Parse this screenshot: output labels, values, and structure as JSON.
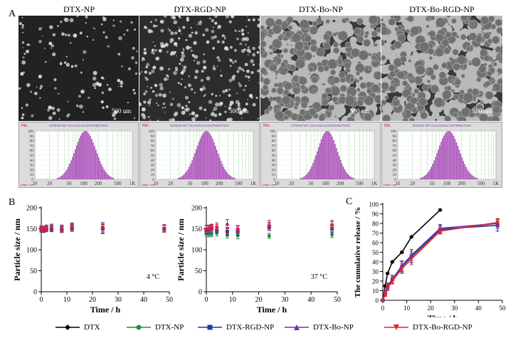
{
  "panel_letters": {
    "a": "A",
    "b": "B",
    "c": "C"
  },
  "tem_panels": [
    {
      "title": "DTX-NP",
      "scale": "500 nm",
      "style": "sparse-small"
    },
    {
      "title": "DTX-RGD-NP",
      "scale": "500 nm",
      "style": "dense-small"
    },
    {
      "title": "DTX-Bo-NP",
      "scale": "500 nm",
      "style": "light-aggregates"
    },
    {
      "title": "DTX-Bo-RGD-NP",
      "scale": "500 nm",
      "style": "light-aggregates"
    }
  ],
  "dls": {
    "rel_label": "REL",
    "title": "INTENS-WT GUASSIAN DISTRIBUTION",
    "y_ticks": [
      "100",
      "90",
      "80",
      "70",
      "60",
      "50",
      "40",
      "30",
      "20",
      "10",
      "0"
    ],
    "x_ticks": [
      "10",
      "20",
      "50",
      "100",
      "200",
      "500",
      "1K"
    ],
    "diam_label": "Diam / nm",
    "bar_color": "#a648b6",
    "distributions": [
      {
        "mean_nm": 110,
        "log_sigma": 0.215
      },
      {
        "mean_nm": 110,
        "log_sigma": 0.215
      },
      {
        "mean_nm": 110,
        "log_sigma": 0.2
      },
      {
        "mean_nm": 110,
        "log_sigma": 0.215
      }
    ]
  },
  "chart_data": [
    {
      "type": "scatter",
      "xlabel": "Time / h",
      "ylabel": "Particle size / nm",
      "annotation": "4 °C",
      "xlim": [
        0,
        50
      ],
      "ylim": [
        0,
        200
      ],
      "x_ticks": [
        "0",
        "10",
        "20",
        "30",
        "40",
        "50"
      ],
      "y_ticks": [
        "0",
        "50",
        "100",
        "150",
        "200"
      ],
      "series": [
        {
          "name": "DTX-NP",
          "x": [
            0,
            1,
            2,
            4,
            8,
            12,
            24,
            48
          ],
          "y": [
            150,
            149,
            151,
            152,
            150,
            156,
            150,
            150
          ],
          "err": [
            6,
            6,
            6,
            7,
            7,
            8,
            12,
            8
          ]
        },
        {
          "name": "DTX-RGD-NP",
          "x": [
            0,
            1,
            2,
            4,
            8,
            12,
            24,
            48
          ],
          "y": [
            148,
            147,
            150,
            150,
            148,
            152,
            150,
            150
          ],
          "err": [
            6,
            6,
            7,
            7,
            7,
            8,
            10,
            8
          ]
        },
        {
          "name": "DTX-Bo-NP",
          "x": [
            0,
            1,
            2,
            4,
            8,
            12,
            24,
            48
          ],
          "y": [
            151,
            150,
            153,
            154,
            152,
            155,
            156,
            152
          ],
          "err": [
            6,
            6,
            6,
            7,
            7,
            8,
            9,
            8
          ]
        },
        {
          "name": "DTX-Bo-RGD-NP",
          "x": [
            0,
            1,
            2,
            4,
            8,
            12,
            24,
            48
          ],
          "y": [
            149,
            148,
            150,
            151,
            149,
            154,
            152,
            150
          ],
          "err": [
            6,
            6,
            6,
            7,
            7,
            8,
            9,
            8
          ]
        }
      ]
    },
    {
      "type": "scatter",
      "xlabel": "Time / h",
      "ylabel": "Particle size / nm",
      "annotation": "37 °C",
      "xlim": [
        0,
        50
      ],
      "ylim": [
        0,
        200
      ],
      "x_ticks": [
        "0",
        "10",
        "20",
        "30",
        "40",
        "50"
      ],
      "y_ticks": [
        "0",
        "50",
        "100",
        "150",
        "200"
      ],
      "series": [
        {
          "name": "DTX-NP",
          "x": [
            0,
            1,
            2,
            4,
            8,
            12,
            24,
            48
          ],
          "y": [
            138,
            137,
            137,
            140,
            135,
            134,
            133,
            136
          ],
          "err": [
            6,
            6,
            6,
            7,
            7,
            8,
            6,
            7
          ]
        },
        {
          "name": "DTX-RGD-NP",
          "x": [
            0,
            1,
            2,
            4,
            8,
            12,
            24,
            48
          ],
          "y": [
            147,
            148,
            150,
            146,
            143,
            142,
            155,
            150
          ],
          "err": [
            10,
            8,
            8,
            7,
            8,
            8,
            9,
            9
          ]
        },
        {
          "name": "DTX-Bo-NP",
          "x": [
            0,
            1,
            2,
            4,
            8,
            12,
            24,
            48
          ],
          "y": [
            150,
            152,
            154,
            156,
            162,
            150,
            160,
            160
          ],
          "err": [
            8,
            7,
            7,
            8,
            10,
            8,
            10,
            10
          ]
        },
        {
          "name": "DTX-Bo-RGD-NP",
          "x": [
            0,
            1,
            2,
            4,
            8,
            12,
            24,
            48
          ],
          "y": [
            149,
            150,
            153,
            152,
            150,
            148,
            156,
            158
          ],
          "err": [
            8,
            7,
            7,
            8,
            9,
            8,
            9,
            9
          ]
        }
      ]
    },
    {
      "type": "line",
      "xlabel": "Time / h",
      "ylabel": "The cumulative release / %",
      "xlim": [
        0,
        50
      ],
      "ylim": [
        0,
        100
      ],
      "x_ticks": [
        "0",
        "10",
        "20",
        "30",
        "40",
        "50"
      ],
      "y_ticks": [
        "0",
        "10",
        "20",
        "30",
        "40",
        "50",
        "60",
        "70",
        "80",
        "90",
        "100"
      ],
      "series": [
        {
          "name": "DTX",
          "x": [
            0,
            1,
            2,
            4,
            8,
            12,
            24
          ],
          "y": [
            0,
            15,
            28,
            40,
            50,
            66,
            94
          ],
          "err": [
            0,
            1,
            1,
            1,
            1,
            1,
            1
          ]
        },
        {
          "name": "DTX-NP",
          "x": [
            0,
            1,
            2,
            4,
            8,
            12,
            24,
            48
          ],
          "y": [
            0,
            7,
            14,
            21,
            35,
            45,
            73,
            80
          ],
          "err": [
            0,
            2,
            3,
            4,
            5,
            6,
            4,
            5
          ]
        },
        {
          "name": "DTX-RGD-NP",
          "x": [
            0,
            1,
            2,
            4,
            8,
            12,
            24,
            48
          ],
          "y": [
            0,
            7,
            14,
            22,
            35,
            46,
            74,
            78
          ],
          "err": [
            0,
            3,
            4,
            4,
            6,
            7,
            4,
            6
          ]
        },
        {
          "name": "DTX-Bo-NP",
          "x": [
            0,
            1,
            2,
            4,
            8,
            12,
            24,
            48
          ],
          "y": [
            0,
            8,
            15,
            22,
            36,
            47,
            75,
            80
          ],
          "err": [
            0,
            2,
            3,
            4,
            5,
            6,
            4,
            5
          ]
        },
        {
          "name": "DTX-Bo-RGD-NP",
          "x": [
            0,
            1,
            2,
            4,
            8,
            12,
            24,
            48
          ],
          "y": [
            0,
            6,
            13,
            20,
            33,
            43,
            72,
            81
          ],
          "err": [
            0,
            2,
            3,
            3,
            5,
            6,
            3,
            4
          ]
        }
      ]
    }
  ],
  "legend": {
    "items": [
      {
        "name": "DTX",
        "color": "#000000",
        "marker": "diamond"
      },
      {
        "name": "DTX-NP",
        "color": "#2e8b3c",
        "marker": "circle"
      },
      {
        "name": "DTX-RGD-NP",
        "color": "#1f3aa0",
        "marker": "square"
      },
      {
        "name": "DTX-Bo-NP",
        "color": "#7a2bb5",
        "marker": "triangle-up"
      },
      {
        "name": "DTX-Bo-RGD-NP",
        "color": "#e2232a",
        "marker": "triangle-down"
      }
    ]
  }
}
